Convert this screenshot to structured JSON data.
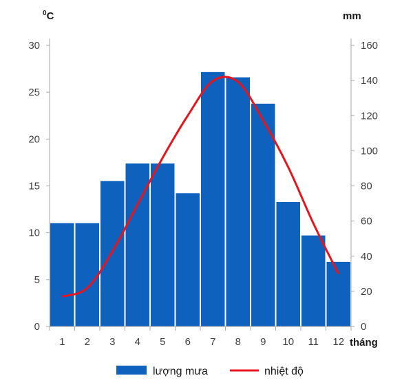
{
  "chart_data": {
    "type": "bar-line",
    "categories": [
      "1",
      "2",
      "3",
      "4",
      "5",
      "6",
      "7",
      "8",
      "9",
      "10",
      "11",
      "12"
    ],
    "xlabel": "tháng",
    "left_axis": {
      "unit": "°C",
      "unit_base": "0",
      "unit_sup": "0",
      "unit_letter": "C",
      "range": [
        0,
        30
      ],
      "ticks": [
        "0",
        "5",
        "10",
        "15",
        "20",
        "25",
        "30"
      ]
    },
    "right_axis": {
      "unit": "mm",
      "range": [
        0,
        160
      ],
      "ticks": [
        "0",
        "20",
        "40",
        "60",
        "80",
        "100",
        "120",
        "140",
        "160"
      ]
    },
    "series": [
      {
        "name": "lượng mưa",
        "type": "bar",
        "axis": "right",
        "color": "#0F61BE",
        "values": [
          59,
          59,
          83,
          93,
          93,
          76,
          145,
          142,
          127,
          71,
          52,
          37
        ]
      },
      {
        "name": "nhiệt độ",
        "type": "line",
        "axis": "left",
        "color": "#E8141B",
        "values": [
          3.2,
          4.1,
          8.0,
          13.0,
          18.0,
          22.5,
          26.2,
          26.1,
          22.0,
          17.0,
          11.0,
          5.6
        ]
      }
    ],
    "legend_position": "bottom",
    "grid": false
  }
}
